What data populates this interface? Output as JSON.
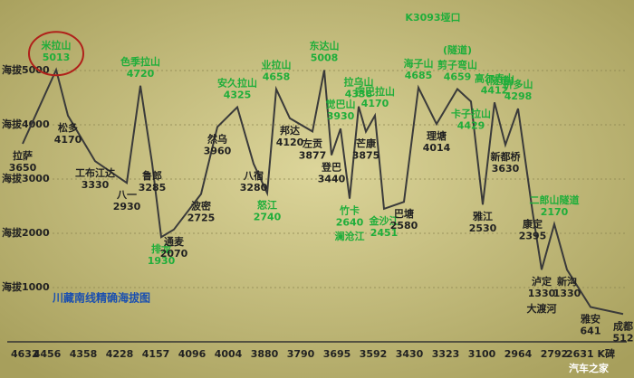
{
  "chart_data": {
    "type": "line",
    "title": "川藏南线精确海拔图",
    "categories": [
      "拉萨",
      "米拉山",
      "松多",
      "工布江达",
      "八一",
      "色季拉山",
      "鲁郎",
      "排龙",
      "通麦",
      "波密",
      "然乌",
      "安久拉山",
      "八宿",
      "怒江",
      "业拉山",
      "邦达",
      "左贡",
      "东达山",
      "登巴",
      "觉巴山",
      "竹卡",
      "拉乌山",
      "芒康",
      "宗巴拉山",
      "金沙江",
      "巴塘",
      "海子山",
      "理塘",
      "剪子弯山",
      "卡子拉山",
      "雅江",
      "高尔寺山",
      "新都桥",
      "折多山",
      "康定",
      "泸定",
      "二郎山隧道",
      "新沟",
      "雅安",
      "成都"
    ],
    "values": [
      3650,
      5013,
      4170,
      3330,
      2930,
      4720,
      3285,
      1930,
      2070,
      2725,
      3960,
      4325,
      3280,
      2740,
      4658,
      4120,
      3877,
      5008,
      3440,
      3930,
      2640,
      4338,
      3875,
      4170,
      2451,
      2580,
      4685,
      4014,
      4659,
      4429,
      2530,
      4412,
      3630,
      4298,
      2395,
      1330,
      2170,
      1330,
      641,
      512
    ],
    "label_colors": [
      "#222",
      "#1fae3a",
      "#222",
      "#222",
      "#222",
      "#1fae3a",
      "#222",
      "#1fae3a",
      "#222",
      "#222",
      "#222",
      "#1fae3a",
      "#222",
      "#1fae3a",
      "#1fae3a",
      "#222",
      "#222",
      "#1fae3a",
      "#222",
      "#1fae3a",
      "#1fae3a",
      "#1fae3a",
      "#222",
      "#1fae3a",
      "#1fae3a",
      "#222",
      "#1fae3a",
      "#222",
      "#1fae3a",
      "#1fae3a",
      "#222",
      "#1fae3a",
      "#222",
      "#1fae3a",
      "#222",
      "#222",
      "#1fae3a",
      "#222",
      "#222",
      "#222"
    ],
    "line_color": "#3a3a3a",
    "ylim": [
      0,
      5600
    ],
    "yticks": [
      {
        "value": 1000,
        "label": "海拔1000"
      },
      {
        "value": 2000,
        "label": "海拔2000"
      },
      {
        "value": 3000,
        "label": "海拔3000"
      },
      {
        "value": 4000,
        "label": "海拔4000"
      },
      {
        "value": 5000,
        "label": "海拔5000"
      }
    ],
    "grid": true,
    "km_labels": [
      "4632",
      "4456",
      "4358",
      "4228",
      "4157",
      "4096",
      "4004",
      "3880",
      "3790",
      "3695",
      "3592",
      "3430",
      "3323",
      "3100",
      "2964",
      "2792",
      "2631 K碑"
    ],
    "annotations": [
      "K3093垭口",
      "(隧道)",
      "(隧道)",
      "澜沧江",
      "大渡河",
      "汽车之家"
    ]
  }
}
